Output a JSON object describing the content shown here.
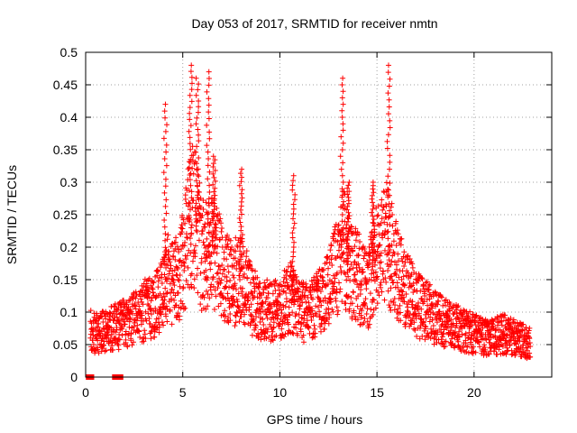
{
  "chart_data": {
    "type": "scatter",
    "title": "Day 053 of 2017, SRMTID for receiver nmtn",
    "xlabel": "GPS time / hours",
    "ylabel": "SRMTID / TECUs",
    "xlim": [
      0,
      24
    ],
    "ylim": [
      0,
      0.5
    ],
    "x_ticks": [
      "0",
      "5",
      "10",
      "15",
      "20"
    ],
    "y_ticks": [
      "0",
      "0.05",
      "0.1",
      "0.15",
      "0.2",
      "0.25",
      "0.3",
      "0.35",
      "0.4",
      "0.45",
      "0.5"
    ],
    "grid": true,
    "marker": "+",
    "color": "#ff0000",
    "series": [
      {
        "name": "SRMTID",
        "trend": {
          "x": [
            0.25,
            0.5,
            1.0,
            1.5,
            2.0,
            2.5,
            3.0,
            3.5,
            4.0,
            4.3,
            4.6,
            5.0,
            5.3,
            5.6,
            6.0,
            6.5,
            7.0,
            7.5,
            8.0,
            8.5,
            9.0,
            9.5,
            10.0,
            10.5,
            11.0,
            11.5,
            12.0,
            12.5,
            13.0,
            13.3,
            13.6,
            14.0,
            14.5,
            15.0,
            15.5,
            16.0,
            16.5,
            17.0,
            17.5,
            18.0,
            18.5,
            19.0,
            19.5,
            20.0,
            20.5,
            21.0,
            21.5,
            22.0,
            22.5,
            22.9
          ],
          "y": [
            0.07,
            0.065,
            0.07,
            0.075,
            0.08,
            0.09,
            0.1,
            0.11,
            0.13,
            0.15,
            0.14,
            0.17,
            0.22,
            0.25,
            0.18,
            0.2,
            0.16,
            0.14,
            0.15,
            0.12,
            0.1,
            0.1,
            0.1,
            0.12,
            0.1,
            0.095,
            0.11,
            0.13,
            0.17,
            0.2,
            0.16,
            0.15,
            0.13,
            0.18,
            0.2,
            0.16,
            0.13,
            0.11,
            0.1,
            0.09,
            0.08,
            0.075,
            0.07,
            0.065,
            0.06,
            0.06,
            0.065,
            0.06,
            0.055,
            0.05
          ]
        },
        "peaks": [
          {
            "x": 4.1,
            "y_max": 0.42
          },
          {
            "x": 5.4,
            "y_max": 0.48
          },
          {
            "x": 5.75,
            "y_max": 0.46
          },
          {
            "x": 6.3,
            "y_max": 0.47
          },
          {
            "x": 6.6,
            "y_max": 0.34
          },
          {
            "x": 8.0,
            "y_max": 0.32
          },
          {
            "x": 10.7,
            "y_max": 0.31
          },
          {
            "x": 13.2,
            "y_max": 0.46
          },
          {
            "x": 13.5,
            "y_max": 0.3
          },
          {
            "x": 14.8,
            "y_max": 0.3
          },
          {
            "x": 15.6,
            "y_max": 0.48
          }
        ],
        "zero_points_x": [
          0.15,
          0.3,
          1.5,
          1.6,
          1.7,
          1.8
        ]
      }
    ]
  }
}
